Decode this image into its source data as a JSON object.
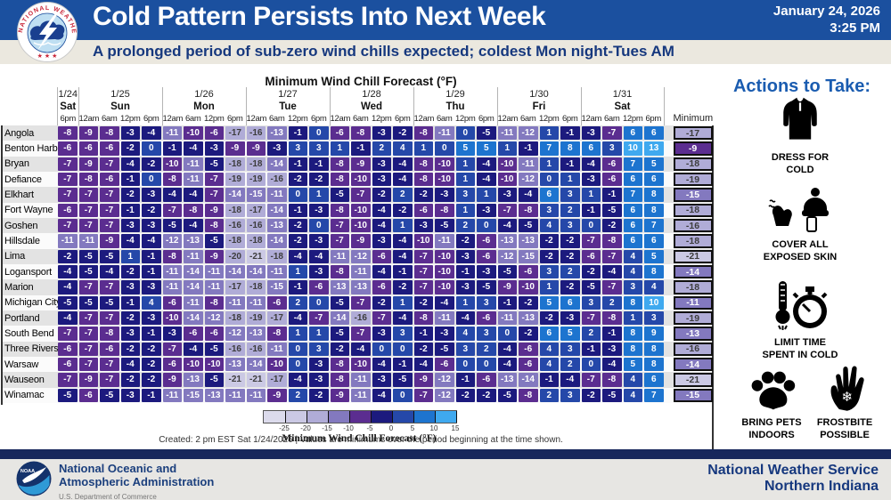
{
  "header": {
    "title": "Cold Pattern Persists Into Next Week",
    "date": "January 24, 2026",
    "time": "3:25 PM",
    "logo_text": "NATIONAL WEATHER SERVICE",
    "logo_stars": "★ ★ ★"
  },
  "subtitle": "A prolonged period of sub-zero wind chills expected; coldest Mon night-Tues AM",
  "chart_data": {
    "type": "heatmap",
    "title": "Minimum Wind Chill Forecast (°F)",
    "minimum_label": "Minimum",
    "day_groups": [
      {
        "date": "1/24",
        "day": "Sat",
        "times": [
          "6pm"
        ]
      },
      {
        "date": "1/25",
        "day": "Sun",
        "times": [
          "12am",
          "6am",
          "12pm",
          "6pm"
        ]
      },
      {
        "date": "1/26",
        "day": "Mon",
        "times": [
          "12am",
          "6am",
          "12pm",
          "6pm"
        ]
      },
      {
        "date": "1/27",
        "day": "Tue",
        "times": [
          "12am",
          "6am",
          "12pm",
          "6pm"
        ]
      },
      {
        "date": "1/28",
        "day": "Wed",
        "times": [
          "12am",
          "6am",
          "12pm",
          "6pm"
        ]
      },
      {
        "date": "1/29",
        "day": "Thu",
        "times": [
          "12am",
          "6am",
          "12pm",
          "6pm"
        ]
      },
      {
        "date": "1/30",
        "day": "Fri",
        "times": [
          "12am",
          "6am",
          "12pm",
          "6pm"
        ]
      },
      {
        "date": "1/31",
        "day": "Sat",
        "times": [
          "12am",
          "6am",
          "12pm",
          "6pm"
        ]
      }
    ],
    "rows": [
      {
        "city": "Angola",
        "values": [
          -8,
          -9,
          -8,
          -3,
          -4,
          -11,
          -10,
          -6,
          -17,
          -16,
          -13,
          -1,
          0,
          -6,
          -8,
          -3,
          -2,
          -8,
          -11,
          0,
          -5,
          -11,
          -12,
          1,
          -1,
          -3,
          -7,
          6,
          6
        ],
        "minimum": -17
      },
      {
        "city": "Benton Harbor",
        "values": [
          -6,
          -6,
          -6,
          -2,
          0,
          -1,
          -4,
          -3,
          -9,
          -9,
          -3,
          3,
          3,
          1,
          -1,
          2,
          4,
          1,
          0,
          5,
          5,
          1,
          -1,
          7,
          8,
          6,
          3,
          10,
          13
        ],
        "minimum": -9
      },
      {
        "city": "Bryan",
        "values": [
          -7,
          -9,
          -7,
          -4,
          -2,
          -10,
          -11,
          -5,
          -18,
          -18,
          -14,
          -1,
          -1,
          -8,
          -9,
          -3,
          -4,
          -8,
          -10,
          1,
          -4,
          -10,
          -11,
          1,
          -1,
          -4,
          -6,
          7,
          5
        ],
        "minimum": -18
      },
      {
        "city": "Defiance",
        "values": [
          -7,
          -8,
          -6,
          -1,
          0,
          -8,
          -11,
          -7,
          -19,
          -19,
          -16,
          -2,
          -2,
          -8,
          -10,
          -3,
          -4,
          -8,
          -10,
          1,
          -4,
          -10,
          -12,
          0,
          1,
          -3,
          -6,
          6,
          6
        ],
        "minimum": -19
      },
      {
        "city": "Elkhart",
        "values": [
          -7,
          -7,
          -7,
          -2,
          -3,
          -4,
          -4,
          -7,
          -14,
          -15,
          -11,
          0,
          1,
          -5,
          -7,
          -2,
          2,
          -2,
          -3,
          3,
          1,
          -3,
          -4,
          6,
          3,
          1,
          -1,
          7,
          8
        ],
        "minimum": -15
      },
      {
        "city": "Fort Wayne",
        "values": [
          -6,
          -7,
          -7,
          -1,
          -2,
          -7,
          -8,
          -9,
          -18,
          -17,
          -14,
          -1,
          -3,
          -8,
          -10,
          -4,
          -2,
          -6,
          -8,
          1,
          -3,
          -7,
          -8,
          3,
          2,
          -1,
          -5,
          6,
          8
        ],
        "minimum": -18
      },
      {
        "city": "Goshen",
        "values": [
          -7,
          -7,
          -7,
          -3,
          -3,
          -5,
          -4,
          -8,
          -16,
          -16,
          -13,
          -2,
          0,
          -7,
          -10,
          -4,
          1,
          -3,
          -5,
          2,
          0,
          -4,
          -5,
          4,
          3,
          0,
          -2,
          6,
          7
        ],
        "minimum": -16
      },
      {
        "city": "Hillsdale",
        "values": [
          -11,
          -11,
          -9,
          -4,
          -4,
          -12,
          -13,
          -5,
          -18,
          -18,
          -14,
          -2,
          -3,
          -7,
          -9,
          -3,
          -4,
          -10,
          -11,
          -2,
          -6,
          -13,
          -13,
          -2,
          -2,
          -7,
          -8,
          6,
          6
        ],
        "minimum": -18
      },
      {
        "city": "Lima",
        "values": [
          -2,
          -5,
          -5,
          1,
          -1,
          -8,
          -11,
          -9,
          -20,
          -21,
          -18,
          -4,
          -4,
          -11,
          -12,
          -6,
          -4,
          -7,
          -10,
          -3,
          -6,
          -12,
          -15,
          -2,
          -2,
          -6,
          -7,
          4,
          5
        ],
        "minimum": -21
      },
      {
        "city": "Logansport",
        "values": [
          -4,
          -5,
          -4,
          -2,
          -1,
          -11,
          -14,
          -11,
          -14,
          -14,
          -11,
          1,
          -3,
          -8,
          -11,
          -4,
          -1,
          -7,
          -10,
          -1,
          -3,
          -5,
          -6,
          3,
          2,
          -2,
          -4,
          4,
          8
        ],
        "minimum": -14
      },
      {
        "city": "Marion",
        "values": [
          -4,
          -7,
          -7,
          -3,
          -3,
          -11,
          -14,
          -11,
          -17,
          -18,
          -15,
          -1,
          -6,
          -13,
          -13,
          -6,
          -2,
          -7,
          -10,
          -3,
          -5,
          -9,
          -10,
          1,
          -2,
          -5,
          -7,
          3,
          4
        ],
        "minimum": -18
      },
      {
        "city": "Michigan City",
        "values": [
          -5,
          -5,
          -5,
          -1,
          4,
          -6,
          -11,
          -8,
          -11,
          -11,
          -6,
          2,
          0,
          -5,
          -7,
          -2,
          1,
          -2,
          -4,
          1,
          3,
          -1,
          -2,
          5,
          6,
          3,
          2,
          8,
          10
        ],
        "minimum": -11
      },
      {
        "city": "Portland",
        "values": [
          -4,
          -7,
          -7,
          -2,
          -3,
          -10,
          -14,
          -12,
          -18,
          -19,
          -17,
          -4,
          -7,
          -14,
          -16,
          -7,
          -4,
          -8,
          -11,
          -4,
          -6,
          -11,
          -13,
          -2,
          -3,
          -7,
          -8,
          1,
          3
        ],
        "minimum": -19
      },
      {
        "city": "South Bend",
        "values": [
          -7,
          -7,
          -8,
          -3,
          -1,
          -3,
          -6,
          -6,
          -12,
          -13,
          -8,
          1,
          1,
          -5,
          -7,
          -3,
          3,
          -1,
          -3,
          4,
          3,
          0,
          -2,
          6,
          5,
          2,
          -1,
          8,
          9
        ],
        "minimum": -13
      },
      {
        "city": "Three Rivers",
        "values": [
          -6,
          -7,
          -6,
          -2,
          -2,
          -7,
          -4,
          -5,
          -16,
          -16,
          -11,
          0,
          3,
          -2,
          -4,
          0,
          0,
          -2,
          -5,
          3,
          2,
          -4,
          -6,
          4,
          3,
          -1,
          -3,
          8,
          8
        ],
        "minimum": -16
      },
      {
        "city": "Warsaw",
        "values": [
          -6,
          -7,
          -7,
          -4,
          -2,
          -6,
          -10,
          -10,
          -13,
          -14,
          -10,
          0,
          -3,
          -8,
          -10,
          -4,
          -1,
          -4,
          -6,
          0,
          0,
          -4,
          -6,
          4,
          2,
          0,
          -4,
          5,
          8
        ],
        "minimum": -14
      },
      {
        "city": "Wauseon",
        "values": [
          -7,
          -9,
          -7,
          -2,
          -2,
          -9,
          -13,
          -5,
          -21,
          -21,
          -17,
          -4,
          -3,
          -8,
          -11,
          -3,
          -5,
          -9,
          -12,
          -1,
          -6,
          -13,
          -14,
          -1,
          -4,
          -7,
          -8,
          4,
          6
        ],
        "minimum": -21
      },
      {
        "city": "Winamac",
        "values": [
          -5,
          -6,
          -5,
          -3,
          -1,
          -11,
          -15,
          -13,
          -11,
          -11,
          -9,
          2,
          -2,
          -9,
          -11,
          -4,
          0,
          -7,
          -12,
          -2,
          -2,
          -5,
          -8,
          2,
          3,
          -2,
          -5,
          4,
          7
        ],
        "minimum": -15
      }
    ],
    "legend": {
      "ticks": [
        -25,
        -20,
        -15,
        -10,
        -5,
        0,
        5,
        10,
        15
      ],
      "colors": [
        "#dcdbec",
        "#cbc9e4",
        "#b0acd7",
        "#8379bf",
        "#5b2d90",
        "#1c1a7e",
        "#2548a9",
        "#1d74cf",
        "#3fa9ef"
      ],
      "label": "Minimum Wind Chill Forecast (°F)"
    },
    "created_note": "Created: 2 pm EST Sat 1/24/2026  |  Values are minimums over the period beginning at the time shown."
  },
  "actions": {
    "title": "Actions to Take:",
    "items": [
      {
        "icon": "jacket-icon",
        "line1": "DRESS FOR",
        "line2": "COLD"
      },
      {
        "icon": "winter-gear-icon",
        "line1": "COVER ALL",
        "line2": "EXPOSED SKIN"
      },
      {
        "icon": "thermometer-stopwatch-icon",
        "line1": "LIMIT TIME",
        "line2": "SPENT IN COLD"
      },
      {
        "icon": "paw-icon",
        "line1": "BRING PETS",
        "line2": "INDOORS"
      },
      {
        "icon": "frostbite-hand-icon",
        "line1": "FROSTBITE",
        "line2": "POSSIBLE"
      }
    ]
  },
  "footer": {
    "noaa_abbr": "NOAA",
    "noaa_line1": "National Oceanic and",
    "noaa_line2": "Atmospheric Administration",
    "noaa_dept": "U.S. Department of Commerce",
    "nws_line1": "National Weather Service",
    "nws_line2": "Northern Indiana"
  },
  "colors": {
    "header_blue": "#1b509f",
    "subtitle_bg": "#ebe8df",
    "accent_navy": "#16387e",
    "actions_blue": "#1a5cb0",
    "footer_strip": "#17275c",
    "footer_bg": "#e7e6e3"
  }
}
